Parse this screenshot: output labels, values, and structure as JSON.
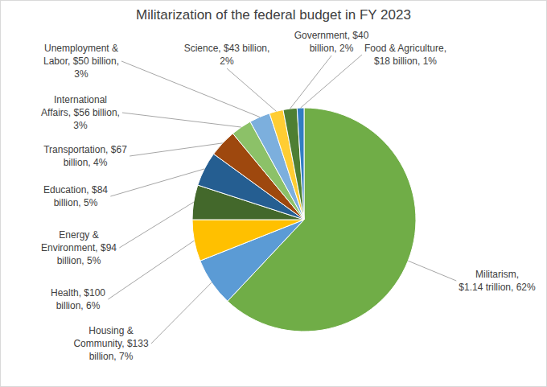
{
  "chart_data": {
    "type": "pie",
    "title": "Militarization of the federal budget in FY 2023",
    "values": [
      62,
      7,
      6,
      5,
      5,
      4,
      3,
      3,
      2,
      2,
      1
    ],
    "value_labels": [
      "Militarism,\n$1.14 trillion, 62%",
      "Housing &\nCommunity, $133\nbillion, 7%",
      "Health, $100\nbillion, 6%",
      "Energy &\nEnvironment, $94\nbillion, 5%",
      "Education, $84\nbillion, 5%",
      "Transportation, $67\nbillion, 4%",
      "International\nAffairs, $56 billion,\n3%",
      "Unemployment &\nLabor, $50 billion,\n3%",
      "Science, $43 billion,\n2%",
      "Government, $40\nbillion, 2%",
      "Food & Agriculture,\n$18 billion, 1%"
    ],
    "colors": [
      "#70ad47",
      "#5b9bd5",
      "#ffc000",
      "#43682b",
      "#255e91",
      "#9e480e",
      "#8cc168",
      "#7cafdd",
      "#ffcd33",
      "#4e7f33",
      "#327dc2"
    ],
    "data_labels": true
  }
}
